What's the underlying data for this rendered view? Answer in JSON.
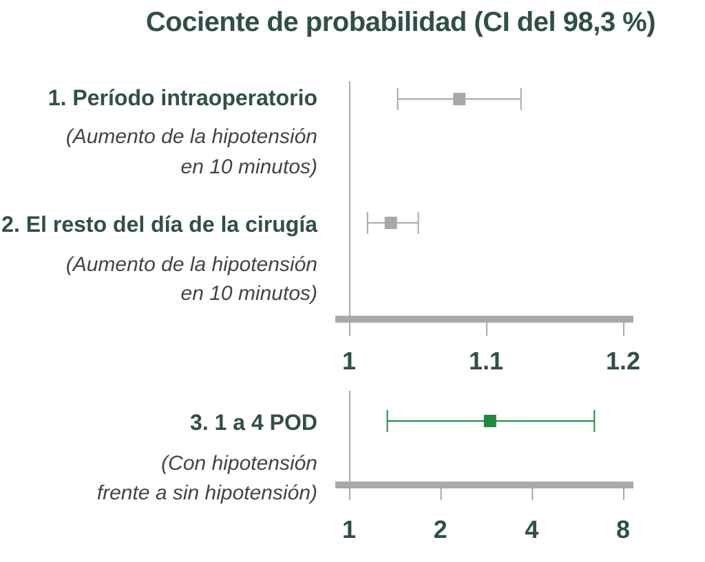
{
  "title": "Cociente de probabilidad (CI del 98,3 %)",
  "rows": [
    {
      "main": "1. Período intraoperatorio",
      "sub1": "(Aumento de la hipotensión",
      "sub2": "en 10 minutos)"
    },
    {
      "main": "2. El resto del día de la cirugía",
      "sub1": "(Aumento de la hipotensión",
      "sub2": "en 10 minutos)"
    },
    {
      "main": "3. 1 a 4 POD",
      "sub1": "(Con hipotensión",
      "sub2": "frente a sin hipotensión)"
    }
  ],
  "chart_data": [
    {
      "type": "forest",
      "xscale": "linear",
      "xlim": [
        1.0,
        1.2
      ],
      "ticks": [
        1.0,
        1.1,
        1.2
      ],
      "tick_labels": [
        "1",
        "1.1",
        "1.2"
      ],
      "estimates": [
        {
          "label": "1. Período intraoperatorio",
          "estimate": 1.08,
          "lower": 1.035,
          "upper": 1.125,
          "color": "#a8a8a8"
        },
        {
          "label": "2. El resto del día de la cirugía",
          "estimate": 1.03,
          "lower": 1.013,
          "upper": 1.05,
          "color": "#a8a8a8"
        }
      ]
    },
    {
      "type": "forest",
      "xscale": "log2",
      "xlim": [
        1,
        8
      ],
      "ticks": [
        1,
        2,
        4,
        8
      ],
      "tick_labels": [
        "1",
        "2",
        "4",
        "8"
      ],
      "estimates": [
        {
          "label": "3. 1 a 4 POD",
          "estimate": 2.9,
          "lower": 1.33,
          "upper": 6.4,
          "color": "#1e8a3e"
        }
      ]
    }
  ]
}
